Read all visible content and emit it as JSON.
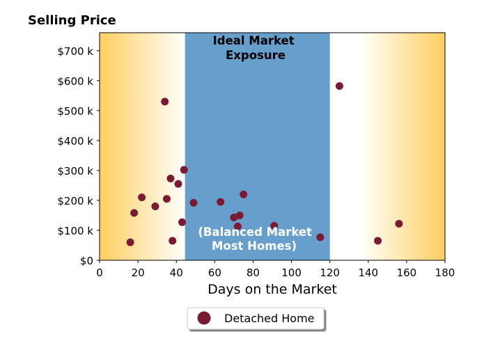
{
  "chart_data": {
    "type": "scatter",
    "title": "Selling Price",
    "xlabel": "Days on the Market",
    "ylabel": "",
    "xlim": [
      0,
      180
    ],
    "ylim": [
      0,
      760000
    ],
    "x_ticks": [
      0,
      20,
      40,
      60,
      80,
      100,
      120,
      140,
      160,
      180
    ],
    "x_tick_labels": [
      "0",
      "20",
      "40",
      "60",
      "80",
      "100",
      "120",
      "140",
      "160",
      "180"
    ],
    "y_ticks": [
      0,
      100000,
      200000,
      300000,
      400000,
      500000,
      600000,
      700000
    ],
    "y_tick_labels": [
      "$0",
      "$100 k",
      "$200 k",
      "$300 k",
      "$400 k",
      "$500 k",
      "$600 k",
      "$700 k"
    ],
    "grid": false,
    "legend_position": "bottom-center",
    "bands": [
      {
        "x_start": 44.5,
        "x_end": 120,
        "label": "Ideal Market Exposure",
        "color": "#679fcc"
      }
    ],
    "annotations": [
      {
        "text": "(Balanced Market Most Homes)",
        "color": "#ffffff"
      }
    ],
    "background_gradient": {
      "edge_color": "#ffcf5f",
      "center_color": "#ffffff"
    },
    "series": [
      {
        "name": "Detached Home",
        "color": "#7b1a33",
        "points": [
          {
            "x": 16,
            "y": 60000
          },
          {
            "x": 18,
            "y": 158000
          },
          {
            "x": 22,
            "y": 210000
          },
          {
            "x": 29,
            "y": 180000
          },
          {
            "x": 34,
            "y": 530000
          },
          {
            "x": 35,
            "y": 205000
          },
          {
            "x": 37,
            "y": 273000
          },
          {
            "x": 38,
            "y": 65000
          },
          {
            "x": 41,
            "y": 255000
          },
          {
            "x": 43,
            "y": 127000
          },
          {
            "x": 44,
            "y": 302000
          },
          {
            "x": 49,
            "y": 192000
          },
          {
            "x": 63,
            "y": 195000
          },
          {
            "x": 70,
            "y": 143000
          },
          {
            "x": 72,
            "y": 113000
          },
          {
            "x": 73,
            "y": 150000
          },
          {
            "x": 75,
            "y": 220000
          },
          {
            "x": 91,
            "y": 115000
          },
          {
            "x": 115,
            "y": 77000
          },
          {
            "x": 125,
            "y": 582000
          },
          {
            "x": 145,
            "y": 65000
          },
          {
            "x": 156,
            "y": 122000
          }
        ]
      }
    ]
  },
  "band_label_lines": [
    "Ideal Market",
    "Exposure"
  ],
  "annotation_lines": [
    "(Balanced Market",
    "Most Homes)"
  ]
}
